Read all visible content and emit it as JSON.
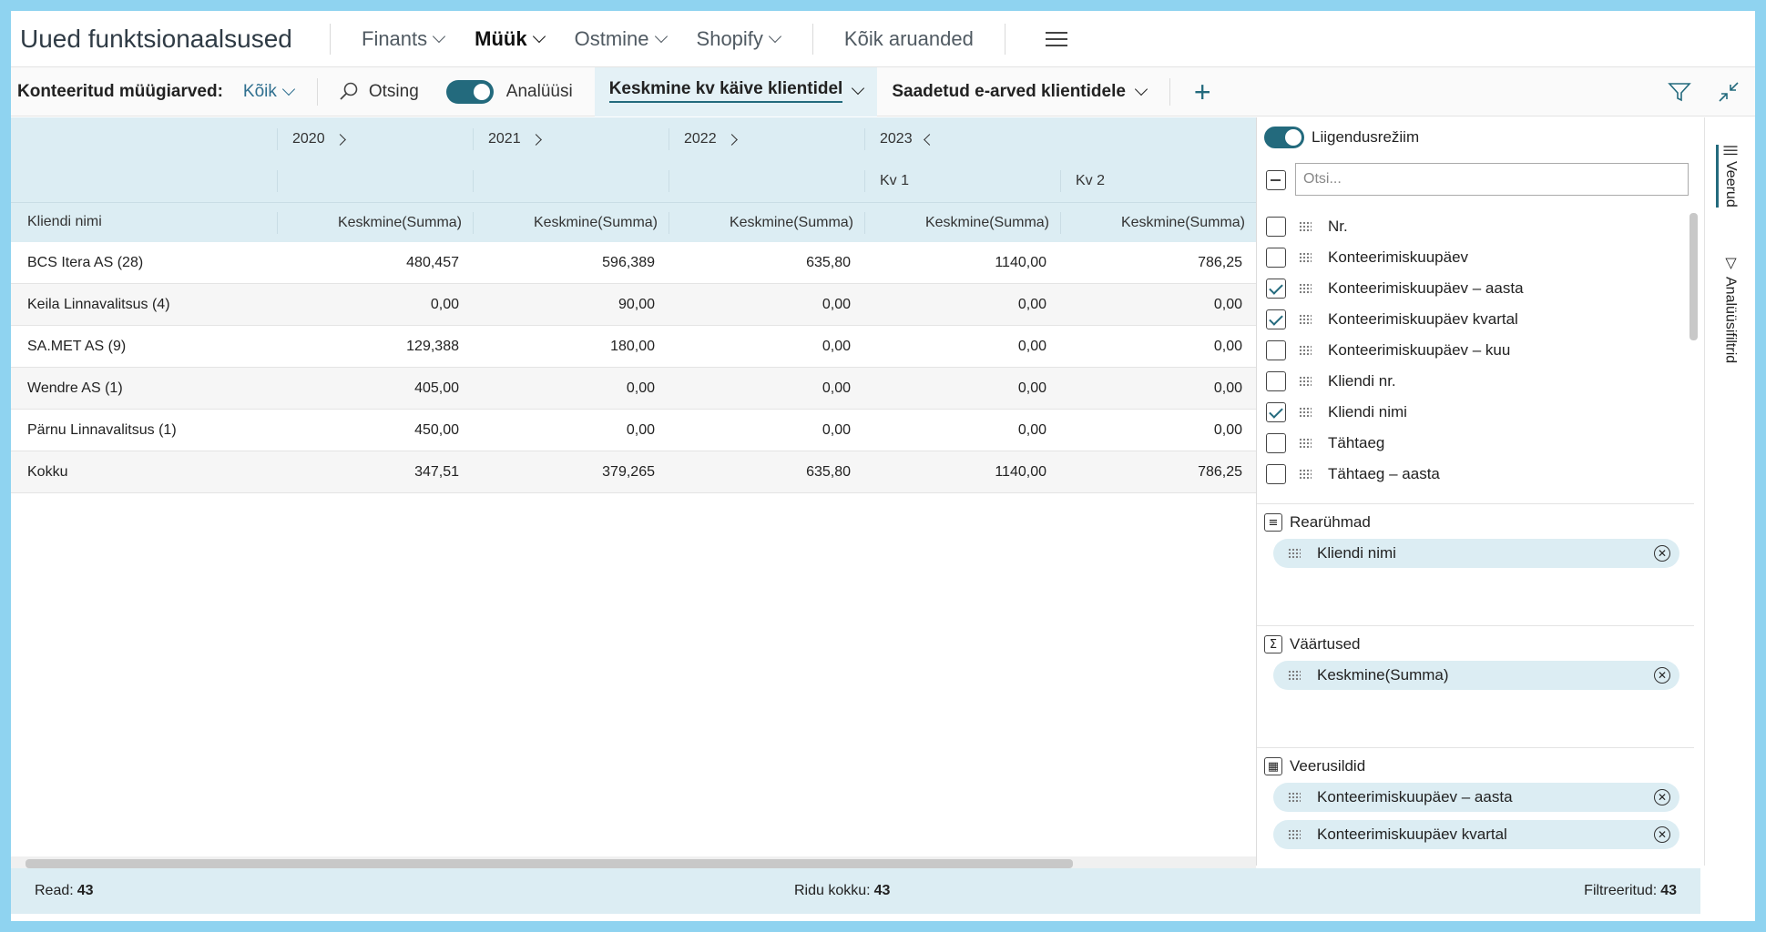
{
  "app_title": "Uued funktsionaalsused",
  "nav": {
    "items": [
      {
        "label": "Finants"
      },
      {
        "label": "Müük"
      },
      {
        "label": "Ostmine"
      },
      {
        "label": "Shopify"
      }
    ],
    "all_reports": "Kõik aruanded"
  },
  "actionbar": {
    "filter_label": "Konteeritud müügiarved:",
    "filter_value": "Kõik",
    "search": "Otsing",
    "analyze": "Analüüsi",
    "active_tab": "Keskmine kv käive klientidel",
    "tab2": "Saadetud e-arved klientidele"
  },
  "grid": {
    "years": [
      "2020",
      "2021",
      "2022",
      "2023"
    ],
    "quarters": [
      "Kv 1",
      "Kv 2"
    ],
    "col_header_name": "Kliendi nimi",
    "col_header_value": "Keskmine(Summa)",
    "rows": [
      {
        "name": "BCS Itera AS (28)",
        "v": [
          "480,457",
          "596,389",
          "635,80",
          "1140,00",
          "786,25"
        ]
      },
      {
        "name": "Keila Linnavalitsus (4)",
        "v": [
          "0,00",
          "90,00",
          "0,00",
          "0,00",
          "0,00"
        ]
      },
      {
        "name": "SA.MET AS (9)",
        "v": [
          "129,388",
          "180,00",
          "0,00",
          "0,00",
          "0,00"
        ]
      },
      {
        "name": "Wendre AS (1)",
        "v": [
          "405,00",
          "0,00",
          "0,00",
          "0,00",
          "0,00"
        ]
      },
      {
        "name": "Pärnu Linnavalitsus (1)",
        "v": [
          "450,00",
          "0,00",
          "0,00",
          "0,00",
          "0,00"
        ]
      },
      {
        "name": "Kokku",
        "v": [
          "347,51",
          "379,265",
          "635,80",
          "1140,00",
          "786,25"
        ]
      }
    ]
  },
  "panel": {
    "pivot_mode": "Liigendusrežiim",
    "search_placeholder": "Otsi...",
    "fields": [
      {
        "label": "Nr.",
        "checked": false
      },
      {
        "label": "Konteerimiskuupäev",
        "checked": false
      },
      {
        "label": "Konteerimiskuupäev – aasta",
        "checked": true
      },
      {
        "label": "Konteerimiskuupäev kvartal",
        "checked": true
      },
      {
        "label": "Konteerimiskuupäev – kuu",
        "checked": false
      },
      {
        "label": "Kliendi nr.",
        "checked": false
      },
      {
        "label": "Kliendi nimi",
        "checked": true
      },
      {
        "label": "Tähtaeg",
        "checked": false
      },
      {
        "label": "Tähtaeg – aasta",
        "checked": false
      }
    ],
    "row_groups_title": "Rearühmad",
    "row_groups": [
      "Kliendi nimi"
    ],
    "values_title": "Väärtused",
    "values": [
      "Keskmine(Summa)"
    ],
    "col_labels_title": "Veerusildid",
    "col_labels": [
      "Konteerimiskuupäev – aasta",
      "Konteerimiskuupäev kvartal"
    ]
  },
  "side_tabs": {
    "columns": "Veerud",
    "filters": "Analüüsifiltrid"
  },
  "footer": {
    "rows_label": "Read:",
    "rows_value": "43",
    "total_label": "Ridu kokku:",
    "total_value": "43",
    "filtered_label": "Filtreeritud:",
    "filtered_value": "43"
  },
  "colors": {
    "accent": "#236a7d",
    "header_band": "#dcedf3"
  }
}
